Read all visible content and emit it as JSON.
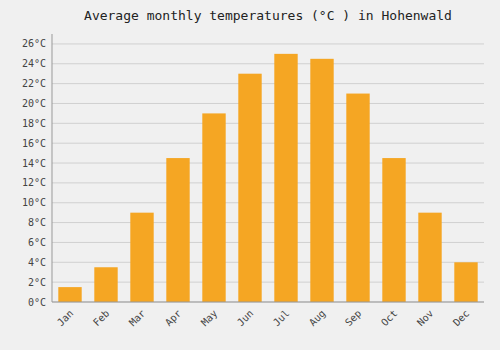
{
  "chart_data": {
    "type": "bar",
    "title": "Average monthly temperatures (°C ) in Hohenwald",
    "categories": [
      "Jan",
      "Feb",
      "Mar",
      "Apr",
      "May",
      "Jun",
      "Jul",
      "Aug",
      "Sep",
      "Oct",
      "Nov",
      "Dec"
    ],
    "values": [
      1.5,
      3.5,
      9.0,
      14.5,
      19.0,
      23.0,
      25.0,
      24.5,
      21.0,
      14.5,
      9.0,
      4.0
    ],
    "color": "#F5A623",
    "ylim": [
      0,
      27
    ],
    "yticks": [
      {
        "value": 0,
        "label": "0°C"
      },
      {
        "value": 2,
        "label": "2°C"
      },
      {
        "value": 4,
        "label": "4°C"
      },
      {
        "value": 6,
        "label": "6°C"
      },
      {
        "value": 8,
        "label": "8°C"
      },
      {
        "value": 10,
        "label": "10°C"
      },
      {
        "value": 12,
        "label": "12°C"
      },
      {
        "value": 14,
        "label": "14°C"
      },
      {
        "value": 16,
        "label": "16°C"
      },
      {
        "value": 18,
        "label": "18°C"
      },
      {
        "value": 20,
        "label": "20°C"
      },
      {
        "value": 22,
        "label": "22°C"
      },
      {
        "value": 24,
        "label": "24°C"
      },
      {
        "value": 26,
        "label": "26°C"
      }
    ],
    "grid": true
  }
}
